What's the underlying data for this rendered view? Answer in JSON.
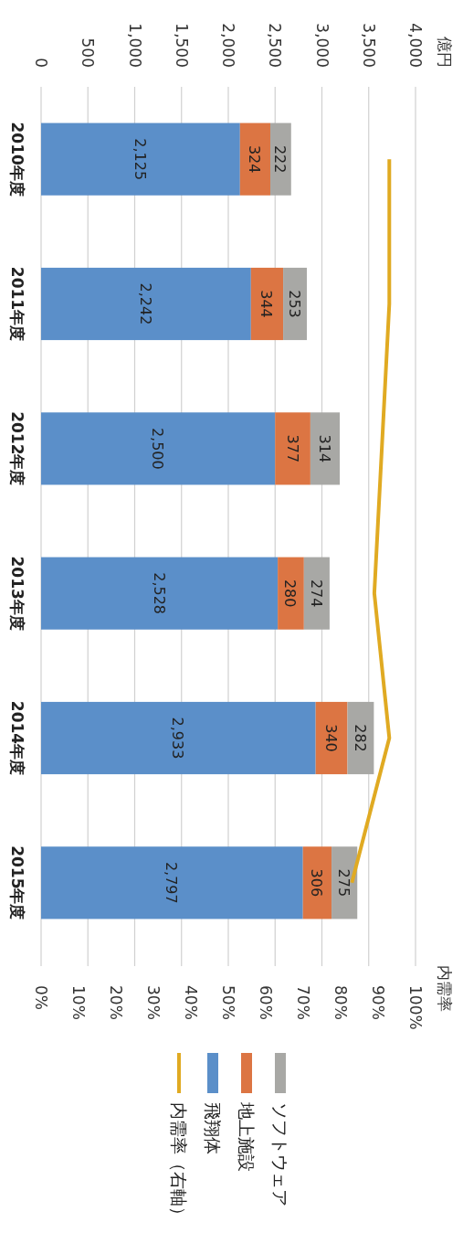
{
  "chart_data": {
    "type": "bar",
    "stacked": true,
    "orientation": "horizontal",
    "annotations": [
      "億円"
    ],
    "x2label": "内需率",
    "categories": [
      "2010年度",
      "2011年度",
      "2012年度",
      "2013年度",
      "2014年度",
      "2015年度"
    ],
    "xlim": [
      0,
      4000
    ],
    "xticks": [
      {
        "value": 0,
        "label": "0"
      },
      {
        "value": 500,
        "label": "500"
      },
      {
        "value": 1000,
        "label": "1,000"
      },
      {
        "value": 1500,
        "label": "1,500"
      },
      {
        "value": 2000,
        "label": "2,000"
      },
      {
        "value": 2500,
        "label": "2,500"
      },
      {
        "value": 3000,
        "label": "3,000"
      },
      {
        "value": 3500,
        "label": "3,500"
      },
      {
        "value": 4000,
        "label": "4,000"
      }
    ],
    "x2lim": [
      0,
      100
    ],
    "x2ticks": [
      {
        "value": 0,
        "label": "0%"
      },
      {
        "value": 10,
        "label": "10%"
      },
      {
        "value": 20,
        "label": "20%"
      },
      {
        "value": 30,
        "label": "30%"
      },
      {
        "value": 40,
        "label": "40%"
      },
      {
        "value": 50,
        "label": "50%"
      },
      {
        "value": 60,
        "label": "60%"
      },
      {
        "value": 70,
        "label": "70%"
      },
      {
        "value": 80,
        "label": "80%"
      },
      {
        "value": 90,
        "label": "90%"
      },
      {
        "value": 100,
        "label": "100%"
      }
    ],
    "grid": "x",
    "legend": "bottom",
    "series": [
      {
        "name": "飛翔体",
        "color": "#5b8fc9",
        "values": [
          2125,
          2242,
          2500,
          2528,
          2933,
          2797
        ],
        "value_labels": [
          "2,125",
          "2,242",
          "2,500",
          "2,528",
          "2,933",
          "2,797"
        ]
      },
      {
        "name": "地上施設",
        "color": "#dc7543",
        "values": [
          324,
          344,
          377,
          280,
          340,
          306
        ],
        "value_labels": [
          "324",
          "344",
          "377",
          "280",
          "340",
          "306"
        ]
      },
      {
        "name": "ソフトウェア",
        "color": "#a8a8a5",
        "values": [
          222,
          253,
          314,
          274,
          282,
          275
        ],
        "value_labels": [
          "222",
          "253",
          "314",
          "274",
          "282",
          "275"
        ]
      },
      {
        "name": "内需率（右軸）",
        "type": "line",
        "axis": "x2",
        "color": "#e0aa22",
        "values": [
          93,
          93,
          91,
          89,
          93,
          83
        ]
      }
    ]
  }
}
